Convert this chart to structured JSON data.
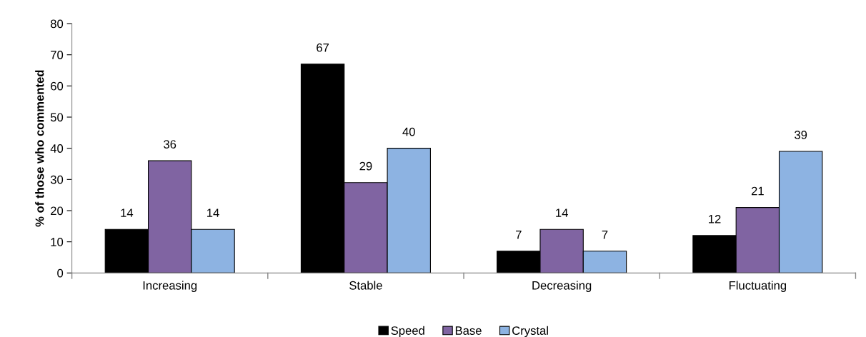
{
  "chart_data": {
    "type": "bar",
    "ylabel": "% of those who commented",
    "categories": [
      "Increasing",
      "Stable",
      "Decreasing",
      "Fluctuating"
    ],
    "series": [
      {
        "name": "Speed",
        "color": "#000000",
        "values": [
          14,
          67,
          7,
          12
        ]
      },
      {
        "name": "Base",
        "color": "#8064a2",
        "values": [
          36,
          29,
          14,
          21
        ]
      },
      {
        "name": "Crystal",
        "color": "#8db3e2",
        "values": [
          14,
          40,
          7,
          39
        ]
      }
    ],
    "ylim": [
      0,
      80
    ],
    "yticks": [
      0,
      10,
      20,
      30,
      40,
      50,
      60,
      70,
      80
    ],
    "data_labels": true,
    "grid": false,
    "legend": "bottom"
  }
}
